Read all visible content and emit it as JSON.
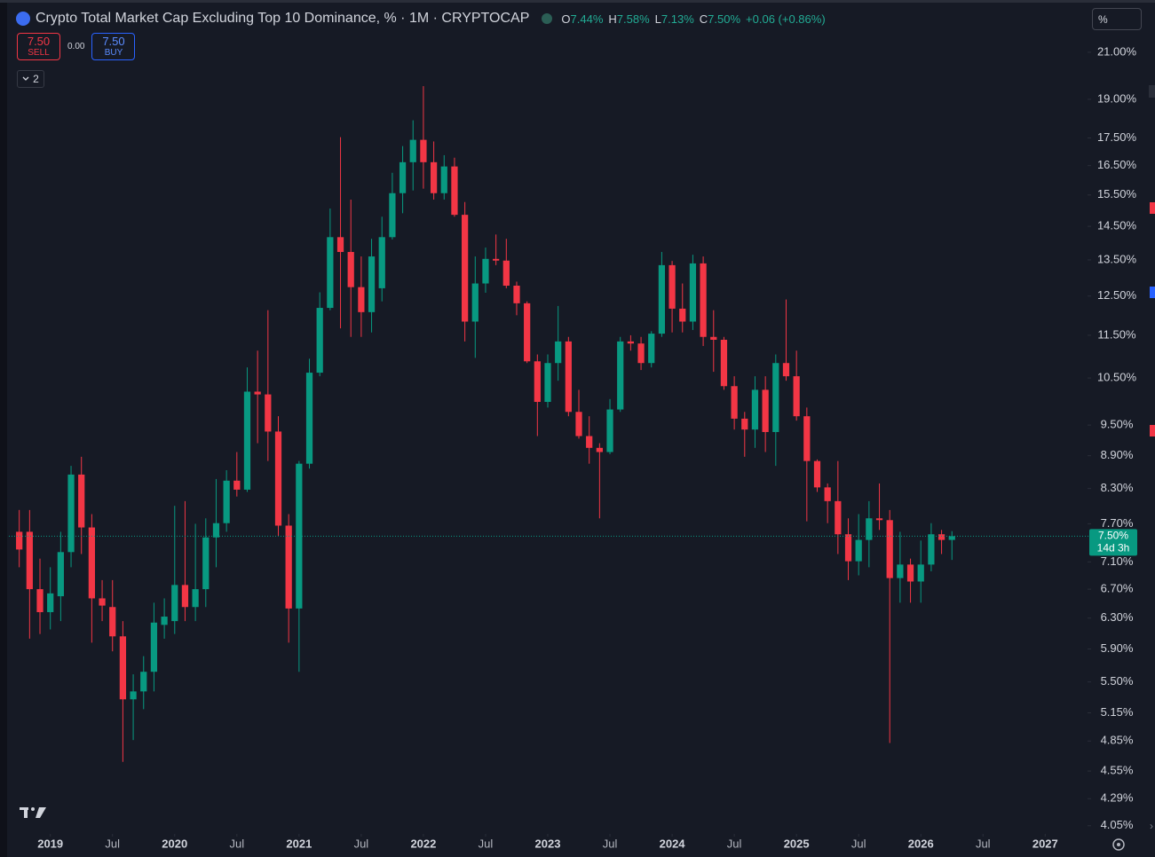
{
  "header": {
    "title": "Crypto Total Market Cap Excluding Top 10 Dominance, % · 1M · CRYPTOCAP",
    "ohlc": [
      {
        "key": "O",
        "value": "7.44%"
      },
      {
        "key": "H",
        "value": "7.58%"
      },
      {
        "key": "L",
        "value": "7.13%"
      },
      {
        "key": "C",
        "value": "7.50%"
      }
    ],
    "change": "+0.06 (+0.86%)"
  },
  "trade_panel": {
    "sell_price": "7.50",
    "sell_label": "SELL",
    "spread": "0.00",
    "buy_price": "7.50",
    "buy_label": "BUY"
  },
  "indicators_toggle": "2",
  "scale_input": "%",
  "chart_data": {
    "type": "candlestick",
    "log_scale": true,
    "grid": false,
    "up_color": "#089981",
    "down_color": "#f23645",
    "categories": [
      "2018-10",
      "2018-11",
      "2018-12",
      "2019-01",
      "2019-02",
      "2019-03",
      "2019-04",
      "2019-05",
      "2019-06",
      "2019-07",
      "2019-08",
      "2019-09",
      "2019-10",
      "2019-11",
      "2019-12",
      "2020-01",
      "2020-02",
      "2020-03",
      "2020-04",
      "2020-05",
      "2020-06",
      "2020-07",
      "2020-08",
      "2020-09",
      "2020-10",
      "2020-11",
      "2020-12",
      "2021-01",
      "2021-02",
      "2021-03",
      "2021-04",
      "2021-05",
      "2021-06",
      "2021-07",
      "2021-08",
      "2021-09",
      "2021-10",
      "2021-11",
      "2021-12",
      "2022-01",
      "2022-02",
      "2022-03",
      "2022-04",
      "2022-05",
      "2022-06",
      "2022-07",
      "2022-08",
      "2022-09",
      "2022-10",
      "2022-11",
      "2022-12",
      "2023-01",
      "2023-02",
      "2023-03",
      "2023-04",
      "2023-05",
      "2023-06",
      "2023-07",
      "2023-08",
      "2023-09",
      "2023-10",
      "2023-11",
      "2023-12",
      "2024-01",
      "2024-02",
      "2024-03",
      "2024-04",
      "2024-05",
      "2024-06",
      "2024-07",
      "2024-08",
      "2024-09",
      "2024-10",
      "2024-11",
      "2024-12",
      "2025-01",
      "2025-02",
      "2025-03",
      "2025-04",
      "2025-05",
      "2025-06",
      "2025-07",
      "2025-08",
      "2025-09",
      "2025-10",
      "2025-11",
      "2025-12",
      "2026-01",
      "2026-02",
      "2026-03",
      "2026-04"
    ],
    "open": [
      7.57,
      7.57,
      6.7,
      6.38,
      6.6,
      7.25,
      8.55,
      7.64,
      6.57,
      6.45,
      6.06,
      5.3,
      5.39,
      5.62,
      6.21,
      6.26,
      6.76,
      6.45,
      6.7,
      7.48,
      7.71,
      8.44,
      8.28,
      10.2,
      10.14,
      9.37,
      7.67,
      6.43,
      8.75,
      10.62,
      12.19,
      14.17,
      13.73,
      12.74,
      12.08,
      12.71,
      14.17,
      15.56,
      16.62,
      17.43,
      16.62,
      15.56,
      16.47,
      14.86,
      11.84,
      12.84,
      13.53,
      13.48,
      12.78,
      12.31,
      10.88,
      9.98,
      10.84,
      11.35,
      9.77,
      9.28,
      9.05,
      8.97,
      9.82,
      11.35,
      11.3,
      10.84,
      11.54,
      13.35,
      12.17,
      11.84,
      13.4,
      11.46,
      11.39,
      10.32,
      9.63,
      9.41,
      10.24,
      9.36,
      10.84,
      10.54,
      9.68,
      8.8,
      8.32,
      8.08,
      7.53,
      7.11,
      7.44,
      7.79,
      7.76,
      6.86,
      7.06,
      6.81,
      7.06,
      7.53,
      7.44
    ],
    "high": [
      7.93,
      7.93,
      7.15,
      7.02,
      7.57,
      8.71,
      8.88,
      7.86,
      6.83,
      6.83,
      6.26,
      5.59,
      5.81,
      6.51,
      6.57,
      8.0,
      8.08,
      7.7,
      7.79,
      8.47,
      8.63,
      8.97,
      10.74,
      11.13,
      12.13,
      9.68,
      7.86,
      8.8,
      10.94,
      12.6,
      15.06,
      17.53,
      15.35,
      13.6,
      14.12,
      14.8,
      16.25,
      17.2,
      18.17,
      19.54,
      17.37,
      16.87,
      16.78,
      15.27,
      13.6,
      13.86,
      14.25,
      14.12,
      12.89,
      12.36,
      11.04,
      11.04,
      12.24,
      11.46,
      10.24,
      9.68,
      9.14,
      10.04,
      11.46,
      11.5,
      11.46,
      11.6,
      13.73,
      13.47,
      12.84,
      13.65,
      13.6,
      12.13,
      11.46,
      10.54,
      9.77,
      10.54,
      10.54,
      11.04,
      12.41,
      11.13,
      9.86,
      8.83,
      8.39,
      8.8,
      7.79,
      7.86,
      8.08,
      8.39,
      7.93,
      7.57,
      7.15,
      7.43,
      7.71,
      7.6,
      7.58
    ],
    "low": [
      7.02,
      6.03,
      6.09,
      6.15,
      6.26,
      7.02,
      7.22,
      5.98,
      6.26,
      5.87,
      4.64,
      4.86,
      5.19,
      5.39,
      6.03,
      6.09,
      6.26,
      6.26,
      6.45,
      7.02,
      7.57,
      8.16,
      8.24,
      9.14,
      8.8,
      7.5,
      5.98,
      5.62,
      8.66,
      10.54,
      12.13,
      11.67,
      11.46,
      11.46,
      11.57,
      12.36,
      14.1,
      14.91,
      15.65,
      15.71,
      15.35,
      15.35,
      14.8,
      11.35,
      10.96,
      12.59,
      13.35,
      12.71,
      12.0,
      10.84,
      9.28,
      9.86,
      10.44,
      9.68,
      9.23,
      8.75,
      7.79,
      8.93,
      9.77,
      11.13,
      10.68,
      10.74,
      11.46,
      11.57,
      11.57,
      11.63,
      11.24,
      10.64,
      10.24,
      9.41,
      8.88,
      9.05,
      8.97,
      8.71,
      10.44,
      9.59,
      7.74,
      8.24,
      7.71,
      7.22,
      6.83,
      6.9,
      7.02,
      7.6,
      4.83,
      6.51,
      6.51,
      6.51,
      6.96,
      7.22,
      7.13
    ],
    "close": [
      7.29,
      6.7,
      6.38,
      6.64,
      7.25,
      8.55,
      7.64,
      6.57,
      6.47,
      6.06,
      5.3,
      5.39,
      5.62,
      6.24,
      6.32,
      6.76,
      6.45,
      6.7,
      7.48,
      7.71,
      8.44,
      8.28,
      10.2,
      10.14,
      9.37,
      7.67,
      6.43,
      8.75,
      10.62,
      12.19,
      14.17,
      13.73,
      12.74,
      12.08,
      13.6,
      14.17,
      15.56,
      16.62,
      17.43,
      16.62,
      15.56,
      16.47,
      14.86,
      11.84,
      12.84,
      13.53,
      13.48,
      12.78,
      12.31,
      10.88,
      9.98,
      10.84,
      11.35,
      9.77,
      9.28,
      9.05,
      8.97,
      9.82,
      11.35,
      11.3,
      10.84,
      11.54,
      13.35,
      12.17,
      11.84,
      13.4,
      11.46,
      11.39,
      10.32,
      9.63,
      9.41,
      10.24,
      9.36,
      10.84,
      10.54,
      9.68,
      8.8,
      8.32,
      8.08,
      7.53,
      7.11,
      7.44,
      7.79,
      7.76,
      6.86,
      7.06,
      6.81,
      7.06,
      7.53,
      7.44,
      7.5
    ],
    "xlim": [
      "2018-09",
      "2027-05"
    ],
    "xticks": [
      {
        "value": "2019-01",
        "label": "2019"
      },
      {
        "value": "2019-07",
        "label": "Jul"
      },
      {
        "value": "2020-01",
        "label": "2020"
      },
      {
        "value": "2020-07",
        "label": "Jul"
      },
      {
        "value": "2021-01",
        "label": "2021"
      },
      {
        "value": "2021-07",
        "label": "Jul"
      },
      {
        "value": "2022-01",
        "label": "2022"
      },
      {
        "value": "2022-07",
        "label": "Jul"
      },
      {
        "value": "2023-01",
        "label": "2023"
      },
      {
        "value": "2023-07",
        "label": "Jul"
      },
      {
        "value": "2024-01",
        "label": "2024"
      },
      {
        "value": "2024-07",
        "label": "Jul"
      },
      {
        "value": "2025-01",
        "label": "2025"
      },
      {
        "value": "2025-07",
        "label": "Jul"
      },
      {
        "value": "2026-01",
        "label": "2026"
      },
      {
        "value": "2026-07",
        "label": "Jul"
      },
      {
        "value": "2027-01",
        "label": "2027"
      }
    ],
    "ylim": [
      3.98,
      23.25
    ],
    "yticks": [
      {
        "value": 21,
        "label": "21.00%"
      },
      {
        "value": 19,
        "label": "19.00%"
      },
      {
        "value": 17.5,
        "label": "17.50%"
      },
      {
        "value": 16.5,
        "label": "16.50%"
      },
      {
        "value": 15.5,
        "label": "15.50%"
      },
      {
        "value": 14.5,
        "label": "14.50%"
      },
      {
        "value": 13.5,
        "label": "13.50%"
      },
      {
        "value": 12.5,
        "label": "12.50%"
      },
      {
        "value": 11.5,
        "label": "11.50%"
      },
      {
        "value": 10.5,
        "label": "10.50%"
      },
      {
        "value": 9.5,
        "label": "9.50%"
      },
      {
        "value": 8.9,
        "label": "8.90%"
      },
      {
        "value": 8.3,
        "label": "8.30%"
      },
      {
        "value": 7.7,
        "label": "7.70%"
      },
      {
        "value": 7.1,
        "label": "7.10%"
      },
      {
        "value": 6.7,
        "label": "6.70%"
      },
      {
        "value": 6.3,
        "label": "6.30%"
      },
      {
        "value": 5.9,
        "label": "5.90%"
      },
      {
        "value": 5.5,
        "label": "5.50%"
      },
      {
        "value": 5.15,
        "label": "5.15%"
      },
      {
        "value": 4.85,
        "label": "4.85%"
      },
      {
        "value": 4.55,
        "label": "4.55%"
      },
      {
        "value": 4.29,
        "label": "4.29%"
      },
      {
        "value": 4.05,
        "label": "4.05%"
      }
    ],
    "last_price": {
      "label": "7.50%",
      "countdown": "14d 3h"
    }
  }
}
